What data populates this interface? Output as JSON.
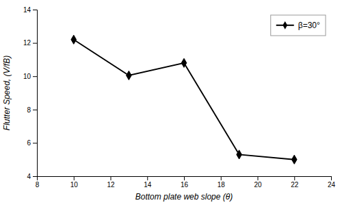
{
  "chart_data": {
    "type": "line",
    "x_label": "Bottom plate web slope (θ)",
    "y_label": "Flutter Speed, (V/fB)",
    "x": [
      10,
      13,
      16,
      19,
      22
    ],
    "series": [
      {
        "name": "β=30°",
        "color": "#000000",
        "marker": "diamond",
        "values": [
          12.2,
          10.05,
          10.8,
          5.3,
          5.0
        ]
      }
    ],
    "xlim": [
      8,
      24
    ],
    "ylim": [
      4,
      14
    ],
    "xticks": [
      8,
      10,
      12,
      14,
      16,
      18,
      20,
      22,
      24
    ],
    "yticks": [
      4,
      6,
      8,
      10,
      12,
      14
    ],
    "legend": "upper right",
    "grid": false
  }
}
